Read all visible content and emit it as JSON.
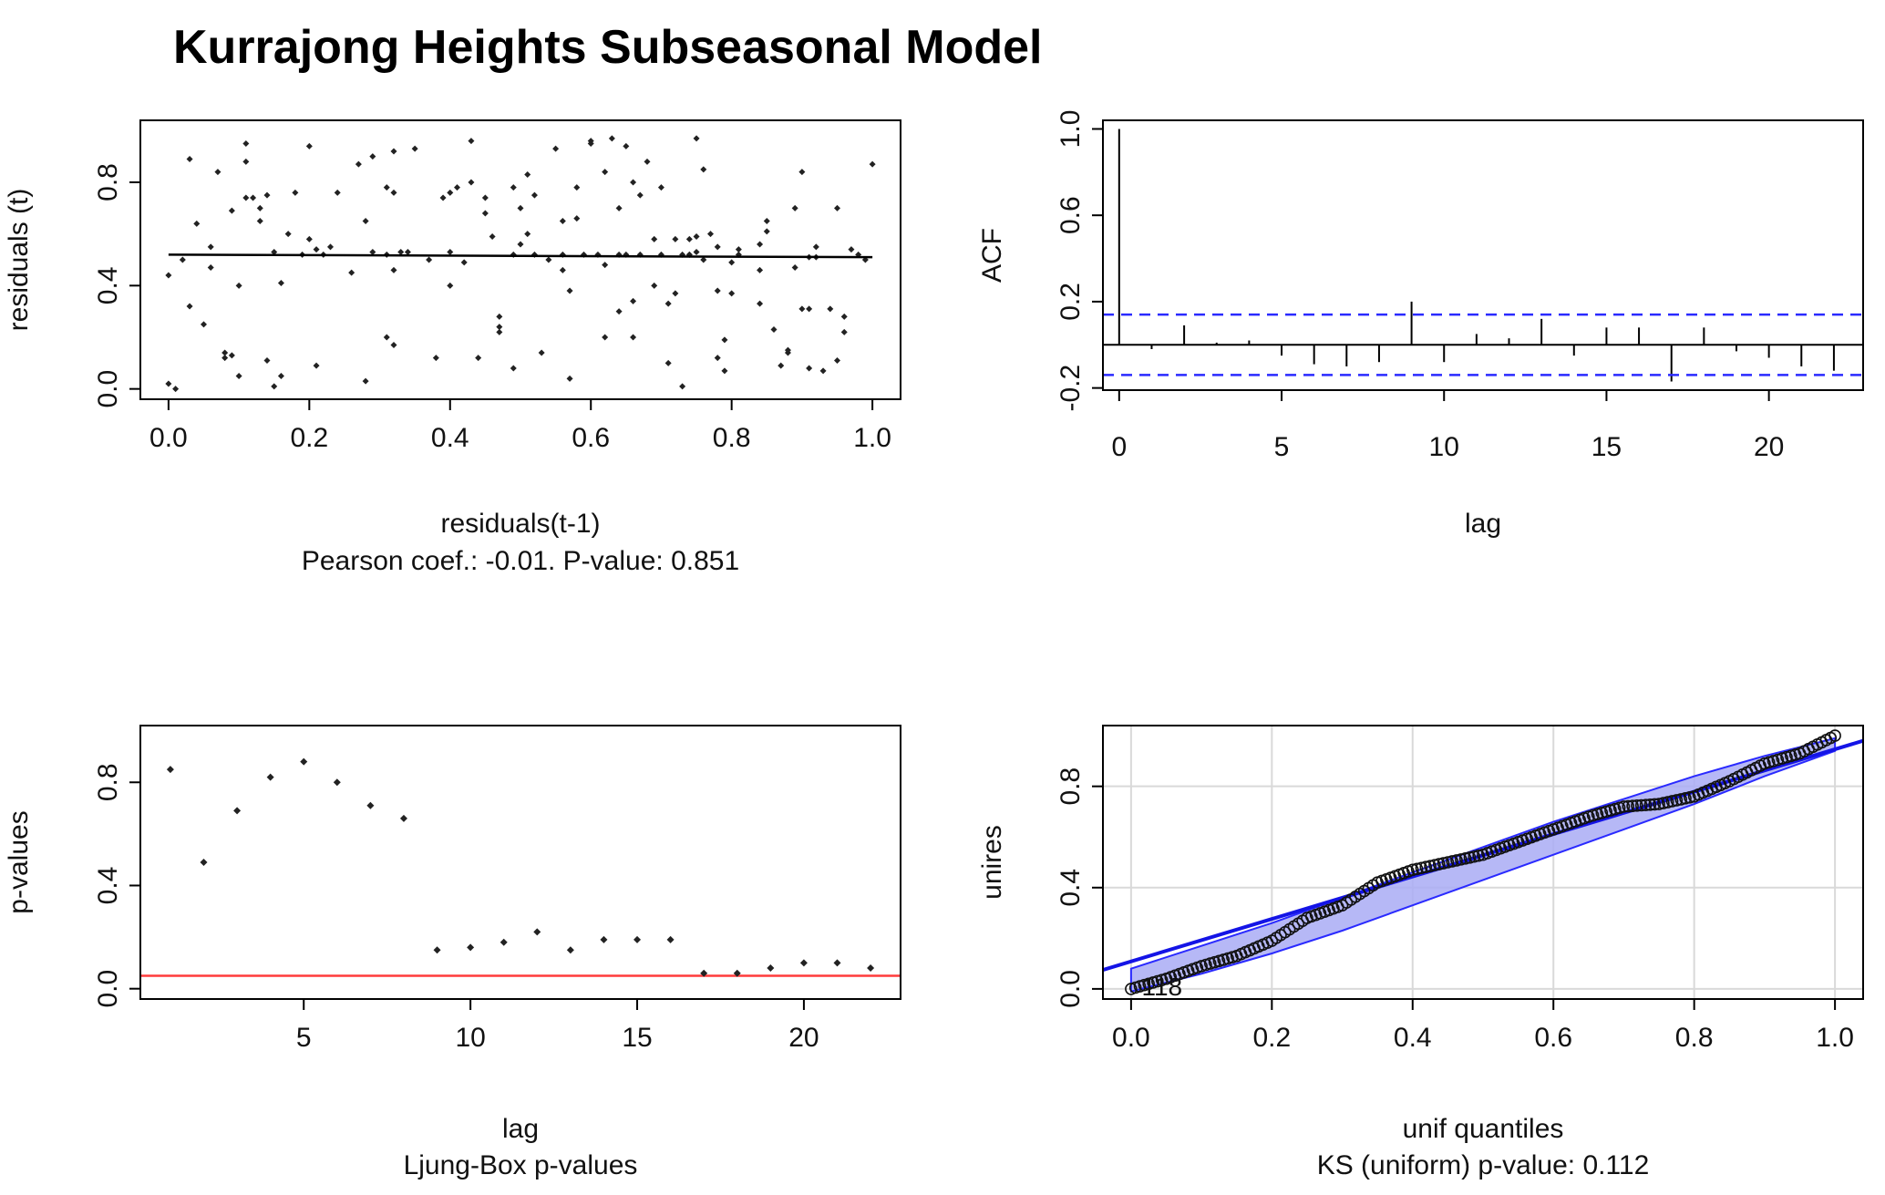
{
  "page_title": "Kurrajong Heights Subseasonal Model",
  "chart_data": [
    {
      "id": "lag-scatter",
      "type": "scatter",
      "title": "",
      "xlabel": "residuals(t-1)",
      "subtitle": "Pearson coef.: -0.01. P-value: 0.851",
      "ylabel": "residuals (t)",
      "xlim": [
        -0.04,
        1.04
      ],
      "ylim": [
        -0.04,
        1.04
      ],
      "xticks": [
        "0.0",
        "0.2",
        "0.4",
        "0.6",
        "0.8",
        "1.0"
      ],
      "yticks": [
        "0.0",
        "0.4",
        "0.8"
      ],
      "grid": false,
      "fit_line": {
        "x": [
          0.0,
          1.0
        ],
        "y": [
          0.52,
          0.51
        ]
      },
      "points": [
        [
          0.0,
          0.02
        ],
        [
          0.01,
          0.0
        ],
        [
          0.0,
          0.44
        ],
        [
          0.02,
          0.5
        ],
        [
          0.03,
          0.89
        ],
        [
          0.03,
          0.32
        ],
        [
          0.04,
          0.64
        ],
        [
          0.05,
          0.25
        ],
        [
          0.06,
          0.55
        ],
        [
          0.06,
          0.47
        ],
        [
          0.07,
          0.84
        ],
        [
          0.08,
          0.14
        ],
        [
          0.08,
          0.12
        ],
        [
          0.09,
          0.69
        ],
        [
          0.09,
          0.13
        ],
        [
          0.1,
          0.05
        ],
        [
          0.1,
          0.4
        ],
        [
          0.11,
          0.88
        ],
        [
          0.11,
          0.95
        ],
        [
          0.11,
          0.74
        ],
        [
          0.12,
          0.74
        ],
        [
          0.13,
          0.7
        ],
        [
          0.13,
          0.65
        ],
        [
          0.14,
          0.75
        ],
        [
          0.14,
          0.11
        ],
        [
          0.15,
          0.01
        ],
        [
          0.15,
          0.53
        ],
        [
          0.16,
          0.05
        ],
        [
          0.16,
          0.41
        ],
        [
          0.17,
          0.6
        ],
        [
          0.18,
          0.76
        ],
        [
          0.19,
          0.52
        ],
        [
          0.2,
          0.94
        ],
        [
          0.2,
          0.58
        ],
        [
          0.21,
          0.09
        ],
        [
          0.21,
          0.54
        ],
        [
          0.22,
          0.52
        ],
        [
          0.23,
          0.55
        ],
        [
          0.24,
          0.76
        ],
        [
          0.26,
          0.45
        ],
        [
          0.27,
          0.87
        ],
        [
          0.28,
          0.03
        ],
        [
          0.28,
          0.65
        ],
        [
          0.29,
          0.9
        ],
        [
          0.29,
          0.53
        ],
        [
          0.31,
          0.52
        ],
        [
          0.31,
          0.78
        ],
        [
          0.31,
          0.2
        ],
        [
          0.32,
          0.92
        ],
        [
          0.32,
          0.76
        ],
        [
          0.32,
          0.46
        ],
        [
          0.32,
          0.17
        ],
        [
          0.33,
          0.53
        ],
        [
          0.34,
          0.53
        ],
        [
          0.35,
          0.93
        ],
        [
          0.37,
          0.5
        ],
        [
          0.38,
          0.12
        ],
        [
          0.39,
          0.74
        ],
        [
          0.4,
          0.53
        ],
        [
          0.4,
          0.76
        ],
        [
          0.4,
          0.4
        ],
        [
          0.41,
          0.78
        ],
        [
          0.42,
          0.49
        ],
        [
          0.43,
          0.96
        ],
        [
          0.43,
          0.8
        ],
        [
          0.44,
          0.12
        ],
        [
          0.45,
          0.74
        ],
        [
          0.45,
          0.68
        ],
        [
          0.46,
          0.59
        ],
        [
          0.47,
          0.28
        ],
        [
          0.47,
          0.22
        ],
        [
          0.47,
          0.24
        ],
        [
          0.49,
          0.78
        ],
        [
          0.49,
          0.52
        ],
        [
          0.49,
          0.08
        ],
        [
          0.5,
          0.56
        ],
        [
          0.5,
          0.7
        ],
        [
          0.51,
          0.83
        ],
        [
          0.51,
          0.6
        ],
        [
          0.52,
          0.75
        ],
        [
          0.52,
          0.52
        ],
        [
          0.53,
          0.14
        ],
        [
          0.54,
          0.5
        ],
        [
          0.55,
          0.93
        ],
        [
          0.56,
          0.65
        ],
        [
          0.56,
          0.52
        ],
        [
          0.56,
          0.46
        ],
        [
          0.57,
          0.38
        ],
        [
          0.57,
          0.04
        ],
        [
          0.58,
          0.78
        ],
        [
          0.58,
          0.66
        ],
        [
          0.59,
          0.52
        ],
        [
          0.6,
          0.96
        ],
        [
          0.6,
          0.95
        ],
        [
          0.61,
          0.52
        ],
        [
          0.62,
          0.2
        ],
        [
          0.62,
          0.84
        ],
        [
          0.62,
          0.48
        ],
        [
          0.63,
          0.97
        ],
        [
          0.64,
          0.7
        ],
        [
          0.64,
          0.52
        ],
        [
          0.64,
          0.3
        ],
        [
          0.65,
          0.94
        ],
        [
          0.65,
          0.52
        ],
        [
          0.66,
          0.8
        ],
        [
          0.66,
          0.34
        ],
        [
          0.66,
          0.2
        ],
        [
          0.67,
          0.75
        ],
        [
          0.67,
          0.52
        ],
        [
          0.68,
          0.88
        ],
        [
          0.69,
          0.58
        ],
        [
          0.69,
          0.4
        ],
        [
          0.7,
          0.78
        ],
        [
          0.7,
          0.52
        ],
        [
          0.71,
          0.1
        ],
        [
          0.71,
          0.33
        ],
        [
          0.72,
          0.58
        ],
        [
          0.72,
          0.37
        ],
        [
          0.73,
          0.01
        ],
        [
          0.73,
          0.52
        ],
        [
          0.74,
          0.58
        ],
        [
          0.74,
          0.52
        ],
        [
          0.74,
          0.52
        ],
        [
          0.75,
          0.53
        ],
        [
          0.75,
          0.59
        ],
        [
          0.75,
          0.97
        ],
        [
          0.76,
          0.85
        ],
        [
          0.76,
          0.5
        ],
        [
          0.77,
          0.6
        ],
        [
          0.78,
          0.12
        ],
        [
          0.78,
          0.55
        ],
        [
          0.78,
          0.38
        ],
        [
          0.79,
          0.19
        ],
        [
          0.79,
          0.07
        ],
        [
          0.8,
          0.49
        ],
        [
          0.8,
          0.37
        ],
        [
          0.81,
          0.52
        ],
        [
          0.81,
          0.54
        ],
        [
          0.84,
          0.33
        ],
        [
          0.84,
          0.56
        ],
        [
          0.84,
          0.46
        ],
        [
          0.85,
          0.61
        ],
        [
          0.85,
          0.65
        ],
        [
          0.86,
          0.23
        ],
        [
          0.87,
          0.09
        ],
        [
          0.88,
          0.14
        ],
        [
          0.88,
          0.15
        ],
        [
          0.89,
          0.47
        ],
        [
          0.89,
          0.7
        ],
        [
          0.9,
          0.31
        ],
        [
          0.9,
          0.84
        ],
        [
          0.91,
          0.51
        ],
        [
          0.91,
          0.31
        ],
        [
          0.91,
          0.08
        ],
        [
          0.92,
          0.55
        ],
        [
          0.92,
          0.51
        ],
        [
          0.93,
          0.07
        ],
        [
          0.94,
          0.31
        ],
        [
          0.95,
          0.7
        ],
        [
          0.95,
          0.11
        ],
        [
          0.96,
          0.22
        ],
        [
          0.96,
          0.28
        ],
        [
          0.97,
          0.54
        ],
        [
          0.98,
          0.52
        ],
        [
          0.99,
          0.5
        ],
        [
          1.0,
          0.87
        ]
      ]
    },
    {
      "id": "acf",
      "type": "bar",
      "title": "",
      "xlabel": "lag",
      "ylabel": "ACF",
      "xlim": [
        -0.5,
        22.9
      ],
      "ylim": [
        -0.21,
        1.04
      ],
      "xticks": [
        "0",
        "5",
        "10",
        "15",
        "20"
      ],
      "yticks": [
        "-0.2",
        "0.2",
        "0.6",
        "1.0"
      ],
      "grid": false,
      "confidence_band": 0.14,
      "lags": [
        0,
        1,
        2,
        3,
        4,
        5,
        6,
        7,
        8,
        9,
        10,
        11,
        12,
        13,
        14,
        15,
        16,
        17,
        18,
        19,
        20,
        21,
        22
      ],
      "values": [
        1.0,
        -0.02,
        0.09,
        0.01,
        0.02,
        -0.05,
        -0.09,
        -0.1,
        -0.08,
        0.2,
        -0.08,
        0.05,
        0.03,
        0.12,
        -0.05,
        0.08,
        0.08,
        -0.17,
        0.08,
        -0.03,
        -0.06,
        -0.1,
        -0.12
      ]
    },
    {
      "id": "ljung-box",
      "type": "scatter",
      "title": "",
      "xlabel": "lag",
      "subtitle": "Ljung-Box p-values",
      "ylabel": "p-values",
      "xlim": [
        0.1,
        22.9
      ],
      "ylim": [
        -0.04,
        1.02
      ],
      "xticks": [
        "5",
        "10",
        "15",
        "20"
      ],
      "yticks": [
        "0.0",
        "0.4",
        "0.8"
      ],
      "grid": false,
      "reference_line": 0.05,
      "lags": [
        1,
        2,
        3,
        4,
        5,
        6,
        7,
        8,
        9,
        10,
        11,
        12,
        13,
        14,
        15,
        16,
        17,
        18,
        19,
        20,
        21,
        22
      ],
      "values": [
        0.85,
        0.49,
        0.69,
        0.82,
        0.88,
        0.8,
        0.71,
        0.66,
        0.15,
        0.16,
        0.18,
        0.22,
        0.15,
        0.19,
        0.19,
        0.19,
        0.06,
        0.06,
        0.08,
        0.1,
        0.1,
        0.08
      ]
    },
    {
      "id": "qq-uniform",
      "type": "scatter",
      "title": "",
      "xlabel": "unif quantiles",
      "subtitle": "KS (uniform) p-value: 0.112",
      "ylabel": "unires",
      "xlim": [
        -0.04,
        1.04
      ],
      "ylim": [
        -0.04,
        1.04
      ],
      "xticks": [
        "0.0",
        "0.2",
        "0.4",
        "0.6",
        "0.8",
        "1.0"
      ],
      "yticks": [
        "0.0",
        "0.4",
        "0.8"
      ],
      "grid": true,
      "point_label": "118",
      "reference_line": {
        "x": [
          -0.04,
          1.04
        ],
        "y": [
          0.075,
          0.98
        ]
      },
      "band_upper": [
        [
          0.0,
          0.08
        ],
        [
          0.1,
          0.17
        ],
        [
          0.2,
          0.26
        ],
        [
          0.3,
          0.36
        ],
        [
          0.4,
          0.46
        ],
        [
          0.5,
          0.56
        ],
        [
          0.6,
          0.66
        ],
        [
          0.7,
          0.75
        ],
        [
          0.8,
          0.84
        ],
        [
          0.9,
          0.92
        ],
        [
          1.0,
          0.99
        ]
      ],
      "band_lower": [
        [
          0.0,
          -0.01
        ],
        [
          0.1,
          0.06
        ],
        [
          0.2,
          0.14
        ],
        [
          0.3,
          0.23
        ],
        [
          0.4,
          0.33
        ],
        [
          0.5,
          0.43
        ],
        [
          0.6,
          0.53
        ],
        [
          0.7,
          0.63
        ],
        [
          0.8,
          0.73
        ],
        [
          0.9,
          0.84
        ],
        [
          1.0,
          0.94
        ]
      ],
      "qq_curve": [
        [
          0.0,
          0.0
        ],
        [
          0.05,
          0.04
        ],
        [
          0.1,
          0.09
        ],
        [
          0.15,
          0.13
        ],
        [
          0.2,
          0.19
        ],
        [
          0.25,
          0.28
        ],
        [
          0.3,
          0.33
        ],
        [
          0.35,
          0.42
        ],
        [
          0.4,
          0.47
        ],
        [
          0.45,
          0.5
        ],
        [
          0.5,
          0.53
        ],
        [
          0.55,
          0.58
        ],
        [
          0.6,
          0.63
        ],
        [
          0.65,
          0.68
        ],
        [
          0.7,
          0.72
        ],
        [
          0.75,
          0.73
        ],
        [
          0.8,
          0.76
        ],
        [
          0.85,
          0.82
        ],
        [
          0.9,
          0.89
        ],
        [
          0.95,
          0.93
        ],
        [
          1.0,
          1.0
        ]
      ]
    }
  ],
  "colors": {
    "axis": "#000000",
    "point": "#222222",
    "acf_band": "#2a2aff",
    "ljung_reference": "#ff3b3b",
    "qq_line": "#1414e6",
    "qq_band_fill": "#a9acf5",
    "qq_band_edge": "#2a2aff",
    "grid": "#d9d9d9"
  }
}
